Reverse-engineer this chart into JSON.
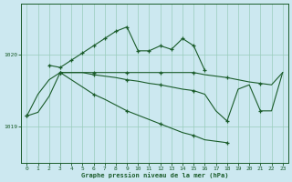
{
  "title": "Graphe pression niveau de la mer (hPa)",
  "bg_color": "#cce8f0",
  "grid_color": "#99ccbb",
  "line_color": "#1a5c2a",
  "xlim": [
    -0.5,
    23.5
  ],
  "ylim": [
    1018.5,
    1020.7
  ],
  "yticks": [
    1019,
    1020
  ],
  "xticks": [
    0,
    1,
    2,
    3,
    4,
    5,
    6,
    7,
    8,
    9,
    10,
    11,
    12,
    13,
    14,
    15,
    16,
    17,
    18,
    19,
    20,
    21,
    22,
    23
  ],
  "line1_x": [
    0,
    1,
    2,
    3,
    4,
    5,
    6,
    7,
    8,
    9,
    10,
    11,
    12,
    13,
    14,
    15,
    16,
    17,
    18,
    19,
    20,
    21,
    22,
    23
  ],
  "line1_y": [
    1019.15,
    1019.45,
    1019.65,
    1019.75,
    1019.75,
    1019.75,
    1019.75,
    1019.75,
    1019.75,
    1019.75,
    1019.75,
    1019.75,
    1019.75,
    1019.75,
    1019.75,
    1019.75,
    1019.72,
    1019.7,
    1019.68,
    1019.65,
    1019.62,
    1019.6,
    1019.58,
    1019.75
  ],
  "line2_x": [
    2,
    3,
    4,
    5,
    6,
    7,
    8,
    9,
    10,
    11,
    12,
    13,
    14,
    15,
    16
  ],
  "line2_y": [
    1019.85,
    1019.82,
    1019.92,
    1020.02,
    1020.12,
    1020.22,
    1020.32,
    1020.38,
    1020.05,
    1020.05,
    1020.12,
    1020.07,
    1020.22,
    1020.12,
    1019.78
  ],
  "line3_x": [
    3,
    4,
    5,
    6,
    7,
    8,
    9,
    10,
    11,
    12,
    13,
    14,
    15,
    16,
    17,
    18,
    19,
    20,
    21,
    22,
    23
  ],
  "line3_y": [
    1019.75,
    1019.75,
    1019.75,
    1019.72,
    1019.7,
    1019.68,
    1019.65,
    1019.63,
    1019.6,
    1019.58,
    1019.55,
    1019.52,
    1019.5,
    1019.45,
    1019.22,
    1019.08,
    1019.52,
    1019.58,
    1019.22,
    1019.22,
    1019.75
  ],
  "line4_x": [
    0,
    1,
    2,
    3,
    4,
    5,
    6,
    7,
    8,
    9,
    10,
    11,
    12,
    13,
    14,
    15,
    16,
    17,
    18
  ],
  "line4_y": [
    1019.15,
    1019.2,
    1019.42,
    1019.75,
    1019.65,
    1019.55,
    1019.45,
    1019.38,
    1019.3,
    1019.22,
    1019.16,
    1019.1,
    1019.04,
    1018.98,
    1018.92,
    1018.88,
    1018.82,
    1018.8,
    1018.78
  ]
}
